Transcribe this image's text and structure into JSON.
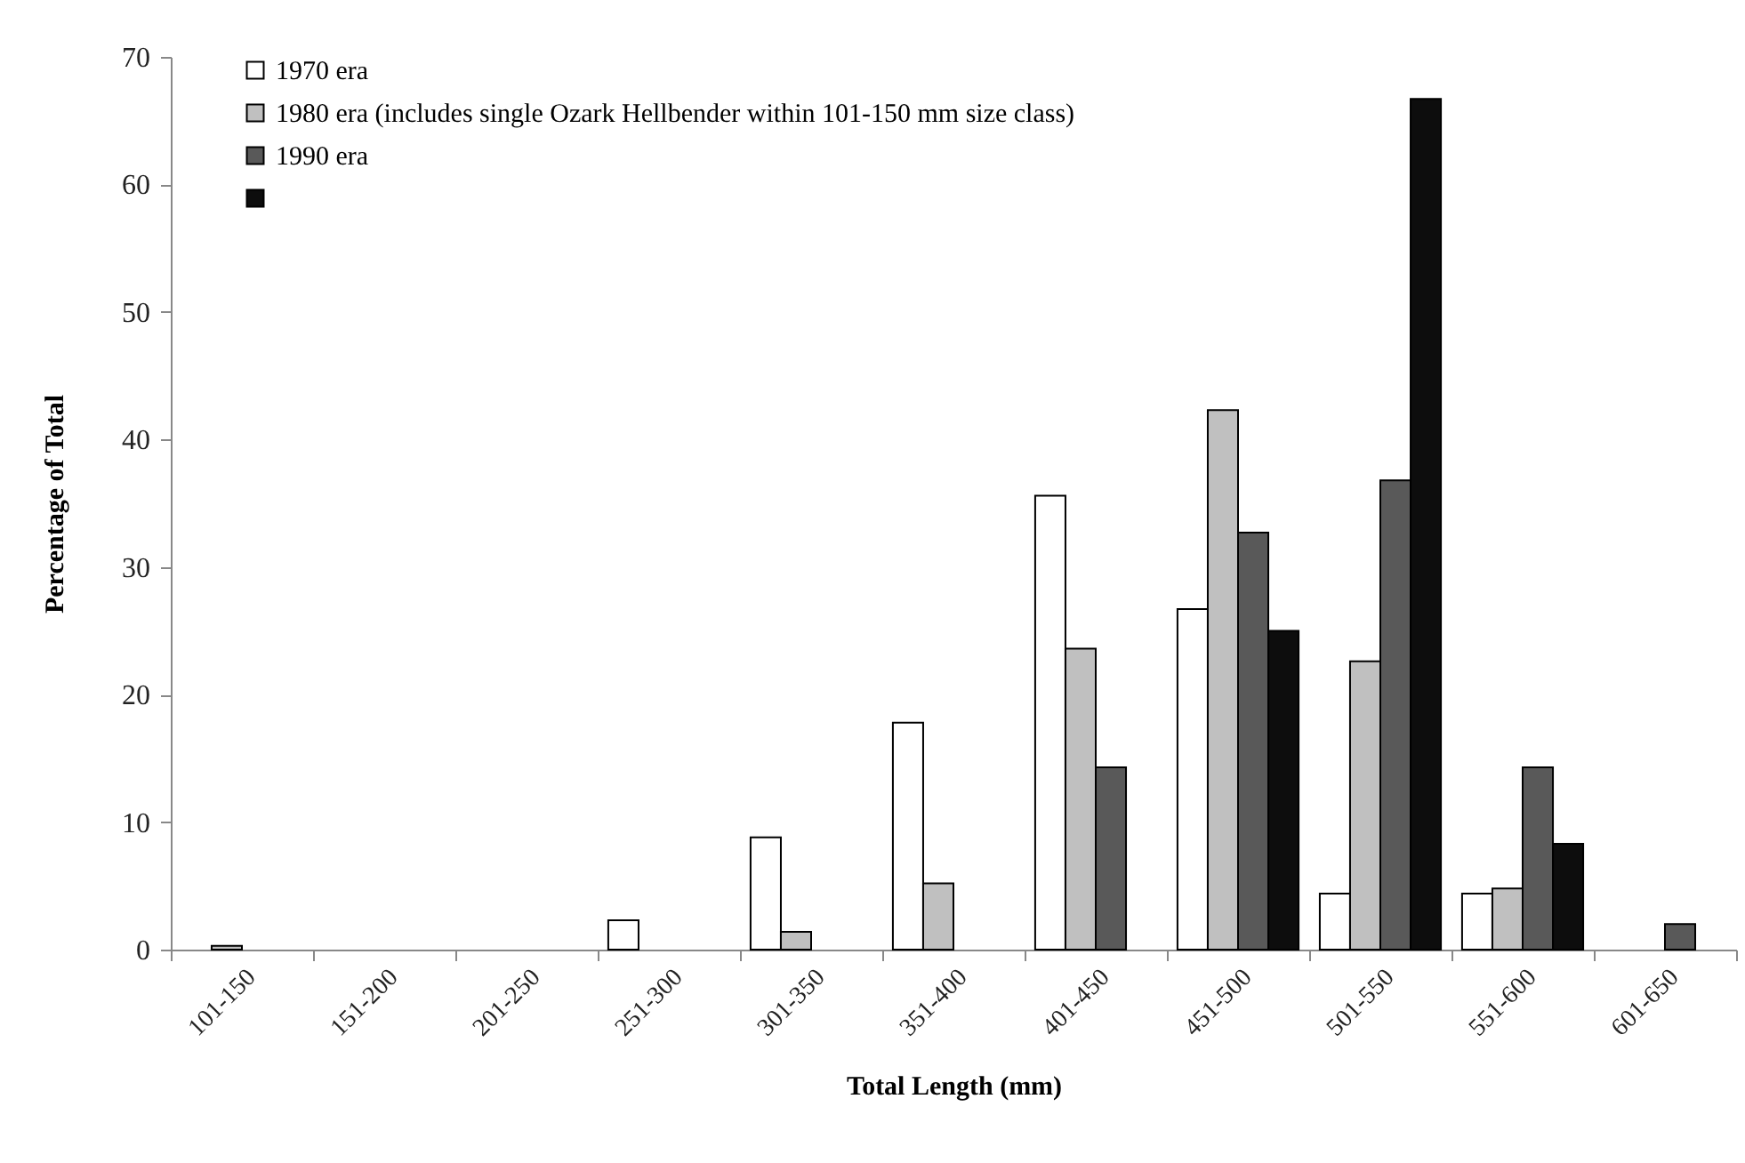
{
  "chart_data": {
    "type": "bar",
    "xlabel": "Total Length (mm)",
    "ylabel": "Percentage of Total",
    "categories": [
      "101-150",
      "151-200",
      "201-250",
      "251-300",
      "301-350",
      "351-400",
      "401-450",
      "451-500",
      "501-550",
      "551-600",
      "601-650"
    ],
    "series": [
      {
        "name": "1970 era",
        "color": "#ffffff",
        "values": [
          null,
          null,
          null,
          2.3,
          8.8,
          17.8,
          35.6,
          26.7,
          4.4,
          4.4,
          null
        ]
      },
      {
        "name": "1980 era (includes single Ozark Hellbender within 101-150 mm size class)",
        "color": "#c0c0c0",
        "values": [
          0.3,
          null,
          null,
          null,
          1.4,
          5.2,
          23.6,
          42.3,
          22.6,
          4.8,
          null
        ]
      },
      {
        "name": "1990 era",
        "color": "#595959",
        "values": [
          null,
          null,
          null,
          null,
          null,
          null,
          14.3,
          32.7,
          36.8,
          14.3,
          2.0
        ]
      },
      {
        "color": "#0d0d0d",
        "values": [
          null,
          null,
          null,
          null,
          null,
          null,
          null,
          25.0,
          66.7,
          8.3,
          null
        ]
      }
    ],
    "ylim": [
      0,
      70
    ],
    "yticks": [
      0,
      10,
      20,
      30,
      40,
      50,
      60,
      70
    ],
    "grid": false,
    "legend": "top left"
  }
}
